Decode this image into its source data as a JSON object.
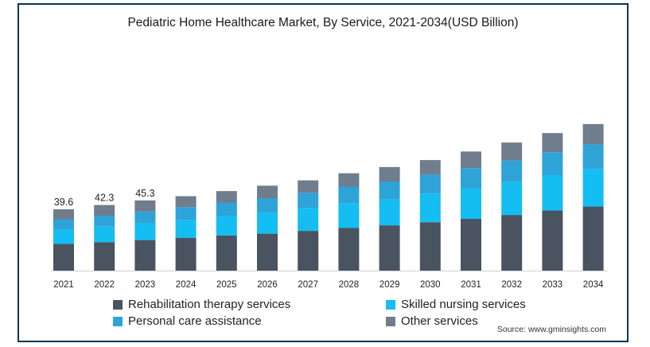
{
  "chart_data": {
    "type": "bar",
    "stacked": true,
    "title": "Pediatric Home Healthcare Market, By Service, 2021-2034(USD Billion)",
    "categories": [
      "2021",
      "2022",
      "2023",
      "2024",
      "2025",
      "2026",
      "2027",
      "2028",
      "2029",
      "2030",
      "2031",
      "2032",
      "2033",
      "2034"
    ],
    "series": [
      {
        "name": "Rehabilitation therapy services",
        "color": "#4a5360",
        "values": [
          17.2,
          18.4,
          19.7,
          21.2,
          22.7,
          23.8,
          25.6,
          27.5,
          29.2,
          31.2,
          33.4,
          35.9,
          38.8,
          41.3
        ]
      },
      {
        "name": "Skilled nursing services",
        "color": "#14bdf2",
        "values": [
          9.3,
          10.0,
          10.8,
          11.5,
          12.4,
          13.5,
          14.8,
          15.9,
          16.8,
          18.5,
          19.8,
          21.2,
          22.8,
          24.3
        ]
      },
      {
        "name": "Personal care assistance",
        "color": "#2ea3d8",
        "values": [
          6.6,
          7.0,
          7.6,
          8.2,
          8.8,
          9.4,
          9.8,
          10.8,
          11.5,
          12.2,
          13.0,
          13.9,
          14.8,
          15.8
        ]
      },
      {
        "name": "Other services",
        "color": "#6f7d8c",
        "values": [
          6.5,
          6.9,
          7.2,
          7.1,
          7.4,
          8.1,
          8.0,
          8.6,
          9.3,
          9.4,
          10.6,
          11.6,
          12.3,
          13.1
        ]
      }
    ],
    "data_labels": [
      "39.6",
      "42.3",
      "45.3"
    ],
    "ylim": [
      0,
      115
    ],
    "xlabel": "",
    "ylabel": "",
    "legend_position": "bottom",
    "grid": false
  },
  "source": "Source: www.gminsights.com"
}
